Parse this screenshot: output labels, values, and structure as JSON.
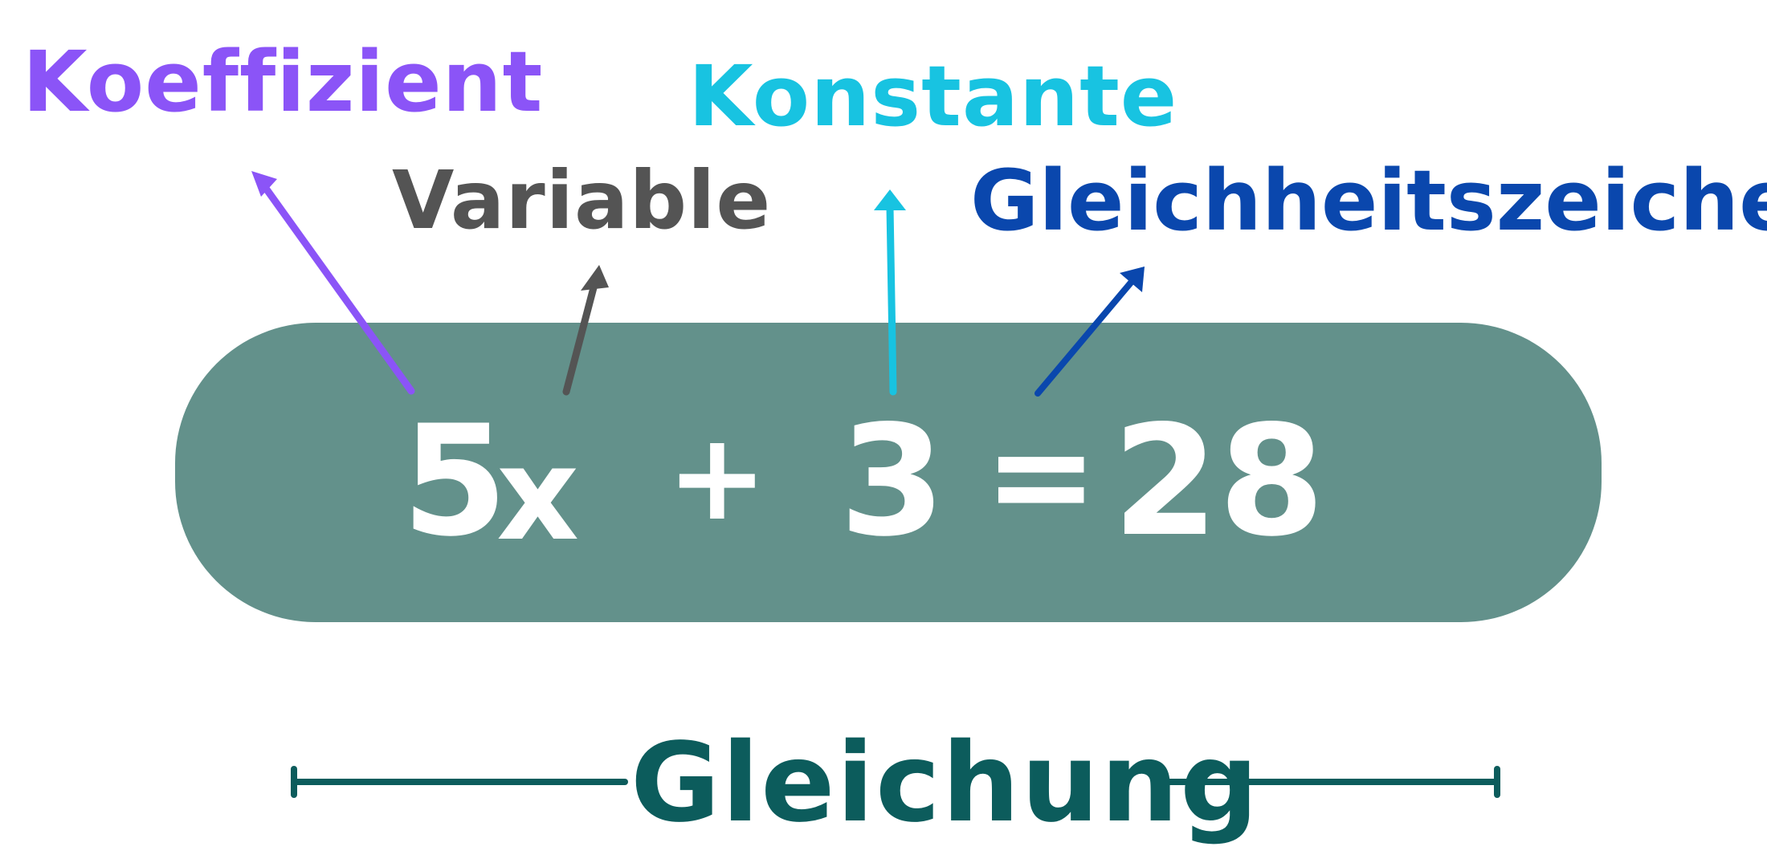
{
  "labels": {
    "coefficient": "Koeffizient",
    "variable": "Variable",
    "constant": "Konstante",
    "equals_sign": "Gleichheitszeichen",
    "equation": "Gleichung"
  },
  "equation": {
    "coefficient": "5",
    "variable": "x",
    "plus": "+",
    "constant": "3",
    "equals": "=",
    "result": "28"
  },
  "colors": {
    "coefficient": "#8b54f7",
    "variable": "#545454",
    "constant": "#18c3e1",
    "equals_sign": "#0a47ad",
    "equation": "#0c5c5c",
    "pill": "#63918b",
    "term_text": "#ffffff"
  }
}
